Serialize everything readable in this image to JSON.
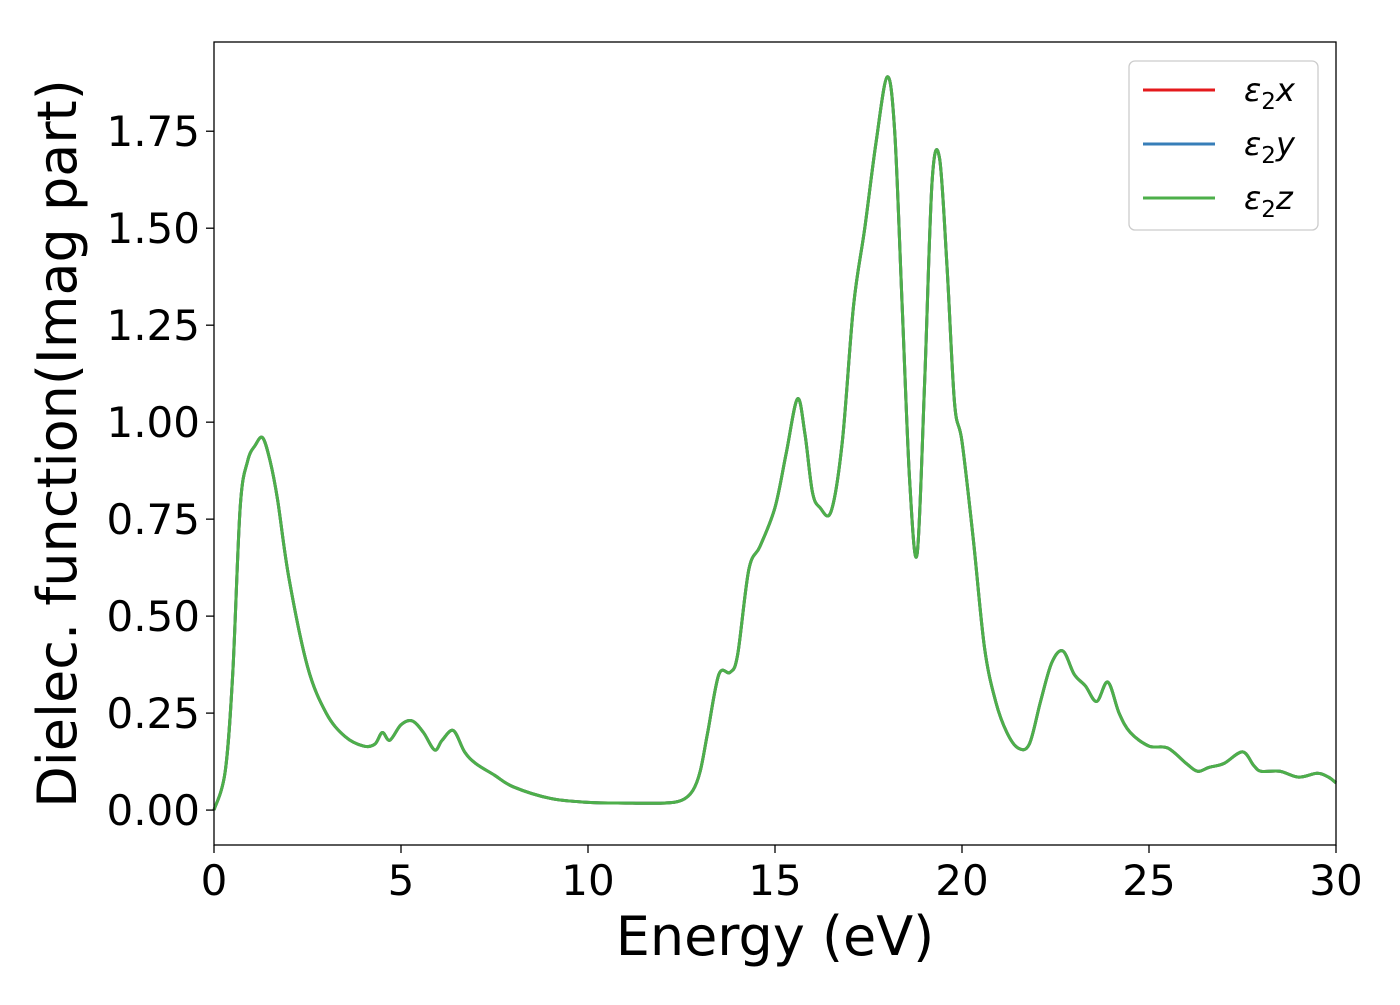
{
  "chart_data": {
    "type": "line",
    "title": "",
    "xlabel": "Energy (eV)",
    "ylabel": "Dielec. function(Imag part)",
    "xlim": [
      0,
      30
    ],
    "ylim": [
      -0.09,
      1.98
    ],
    "xticks": [
      0,
      5,
      10,
      15,
      20,
      25,
      30
    ],
    "xtick_labels": [
      "0",
      "5",
      "10",
      "15",
      "20",
      "25",
      "30"
    ],
    "yticks": [
      0.0,
      0.25,
      0.5,
      0.75,
      1.0,
      1.25,
      1.5,
      1.75
    ],
    "ytick_labels": [
      "0.00",
      "0.25",
      "0.50",
      "0.75",
      "1.00",
      "1.25",
      "1.50",
      "1.75"
    ],
    "grid": false,
    "legend_position": "top-right",
    "series": [
      {
        "name": "ε₂x",
        "legend_main": "ε",
        "legend_sub": "2",
        "legend_suffix": "x",
        "color": "#e41a1c"
      },
      {
        "name": "ε₂y",
        "legend_main": "ε",
        "legend_sub": "2",
        "legend_suffix": "y",
        "color": "#377eb8"
      },
      {
        "name": "ε₂z",
        "legend_main": "ε",
        "legend_sub": "2",
        "legend_suffix": "z",
        "color": "#4daf4a"
      }
    ],
    "x": [
      0,
      0.3,
      0.5,
      0.7,
      0.9,
      1.1,
      1.3,
      1.5,
      1.7,
      2.0,
      2.5,
      3.0,
      3.5,
      4.0,
      4.3,
      4.5,
      4.7,
      5.0,
      5.3,
      5.6,
      5.9,
      6.1,
      6.4,
      6.7,
      7.0,
      7.5,
      8.0,
      9.0,
      10.0,
      11.0,
      12.0,
      12.5,
      12.8,
      13.0,
      13.2,
      13.5,
      13.8,
      14.0,
      14.3,
      14.6,
      15.0,
      15.3,
      15.6,
      15.8,
      16.0,
      16.2,
      16.5,
      16.8,
      17.1,
      17.4,
      17.7,
      18.0,
      18.2,
      18.4,
      18.6,
      18.8,
      19.0,
      19.2,
      19.4,
      19.6,
      19.8,
      20.0,
      20.3,
      20.6,
      20.9,
      21.2,
      21.5,
      21.8,
      22.1,
      22.4,
      22.7,
      23.0,
      23.3,
      23.6,
      23.9,
      24.2,
      24.5,
      25.0,
      25.5,
      26.0,
      26.3,
      26.6,
      27.0,
      27.5,
      27.8,
      28.0,
      28.5,
      29.0,
      29.5,
      29.8,
      30.0
    ],
    "values": [
      0.0,
      0.1,
      0.35,
      0.78,
      0.9,
      0.94,
      0.96,
      0.9,
      0.8,
      0.6,
      0.37,
      0.25,
      0.19,
      0.165,
      0.17,
      0.2,
      0.18,
      0.22,
      0.23,
      0.2,
      0.155,
      0.18,
      0.205,
      0.15,
      0.12,
      0.09,
      0.06,
      0.03,
      0.02,
      0.018,
      0.018,
      0.025,
      0.05,
      0.1,
      0.2,
      0.35,
      0.355,
      0.4,
      0.62,
      0.68,
      0.78,
      0.92,
      1.06,
      0.97,
      0.82,
      0.78,
      0.77,
      0.95,
      1.3,
      1.5,
      1.72,
      1.89,
      1.75,
      1.3,
      0.85,
      0.66,
      1.1,
      1.62,
      1.68,
      1.4,
      1.05,
      0.95,
      0.7,
      0.42,
      0.28,
      0.2,
      0.16,
      0.17,
      0.28,
      0.38,
      0.41,
      0.35,
      0.32,
      0.28,
      0.33,
      0.25,
      0.2,
      0.165,
      0.16,
      0.12,
      0.1,
      0.11,
      0.12,
      0.15,
      0.115,
      0.1,
      0.1,
      0.085,
      0.095,
      0.085,
      0.07
    ]
  }
}
